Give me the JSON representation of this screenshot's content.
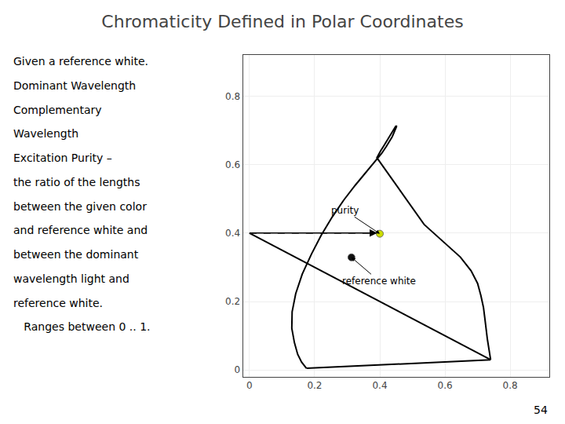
{
  "chart_data": {
    "type": "line",
    "title": "Chromaticity Defined in Polar Coordinates",
    "series": [
      {
        "type": "line",
        "color": "#000000",
        "x": [
          0.175,
          0.172,
          0.16,
          0.148,
          0.138,
          0.13,
          0.131,
          0.142,
          0.162,
          0.19,
          0.22,
          0.254,
          0.29,
          0.325,
          0.358,
          0.385,
          0.406,
          0.42,
          0.43,
          0.438,
          0.443,
          0.447,
          0.45,
          0.451,
          0.451,
          0.449,
          0.447,
          0.443,
          0.437,
          0.43,
          0.422,
          0.413,
          0.402,
          0.391,
          0.536,
          0.6,
          0.647,
          0.68,
          0.7,
          0.71,
          0.718,
          0.722,
          0.725,
          0.73,
          0.735,
          0.74
        ],
        "values": [
          0.005,
          0.009,
          0.023,
          0.046,
          0.08,
          0.122,
          0.17,
          0.223,
          0.28,
          0.338,
          0.393,
          0.447,
          0.497,
          0.54,
          0.577,
          0.608,
          0.633,
          0.653,
          0.668,
          0.681,
          0.692,
          0.7,
          0.706,
          0.71,
          0.712,
          0.712,
          0.709,
          0.703,
          0.695,
          0.684,
          0.671,
          0.656,
          0.639,
          0.62,
          0.425,
          0.37,
          0.33,
          0.29,
          0.253,
          0.218,
          0.183,
          0.153,
          0.123,
          0.09,
          0.06,
          0.03
        ]
      },
      {
        "type": "line",
        "color": "#000000",
        "x": [
          0.175,
          0.74
        ],
        "values": [
          0.005,
          0.03
        ]
      },
      {
        "type": "line",
        "color": "#000000",
        "x": [
          0.0,
          0.74
        ],
        "values": [
          0.4,
          0.03
        ]
      },
      {
        "type": "line",
        "color": "#000000",
        "line_style": "dashed",
        "x": [
          0.0,
          0.392
        ],
        "values": [
          0.4,
          0.4
        ]
      },
      {
        "type": "scatter",
        "marker": "circle",
        "color": "#111111",
        "x": [
          0.313
        ],
        "values": [
          0.329
        ]
      },
      {
        "type": "scatter",
        "marker": "circle",
        "color": "#CCDD00",
        "x": [
          0.4
        ],
        "values": [
          0.398
        ]
      }
    ],
    "annotations": [
      {
        "text": "reference white",
        "x": 0.313,
        "y": 0.329
      },
      {
        "text": "purity",
        "x": 0.4,
        "y": 0.398
      }
    ],
    "notes": [
      "Given a reference white.",
      "Dominant Wavelength",
      "Complementary",
      "Wavelength",
      "Excitation Purity –",
      "the ratio of the lengths",
      "between the given color",
      "and reference white and",
      "between the dominant",
      "wavelength light and",
      "reference white.",
      "   Ranges between 0 .. 1."
    ],
    "page_number": "54",
    "xlim": [
      -0.02,
      0.92
    ],
    "ylim": [
      -0.02,
      0.92
    ],
    "xticks": [
      0,
      0.2,
      0.4,
      0.6,
      0.8
    ],
    "yticks": [
      0,
      0.2,
      0.4,
      0.6,
      0.8
    ],
    "grid": true
  }
}
